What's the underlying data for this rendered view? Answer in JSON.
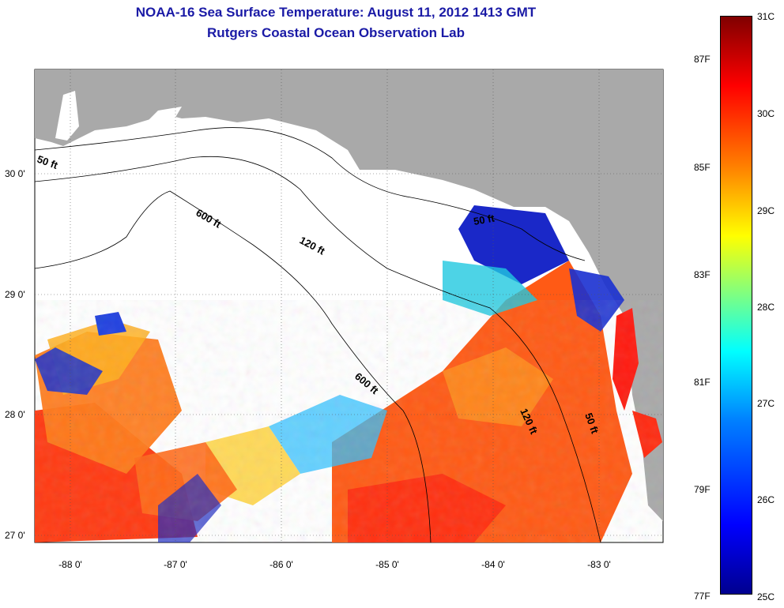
{
  "title": {
    "line1": "NOAA-16 Sea Surface Temperature:  August 11, 2012 1413 GMT",
    "line2": "Rutgers Coastal Ocean Observation Lab"
  },
  "map": {
    "region": "Eastern Gulf of Mexico / Florida Big Bend",
    "lon_range": [
      -88.3,
      -82.4
    ],
    "lat_range": [
      26.95,
      30.85
    ],
    "lon_ticks": [
      "-88 0'",
      "-87 0'",
      "-86 0'",
      "-85 0'",
      "-84 0'",
      "-83 0'"
    ],
    "lat_ticks": [
      "30 0'",
      "29 0'",
      "28 0'",
      "27 0'"
    ],
    "depth_labels": [
      "50 ft",
      "600 ft",
      "120 ft",
      "50 ft",
      "600 ft",
      "120 ft",
      "50 ft"
    ],
    "colors": {
      "land": "#a9a9a9",
      "no_data": "#ffffff",
      "contour": "#000000"
    }
  },
  "colorbar": {
    "celsius": [
      "31C",
      "30C",
      "29C",
      "28C",
      "27C",
      "26C",
      "25C"
    ],
    "fahrenheit": [
      "87F",
      "85F",
      "83F",
      "81F",
      "79F",
      "77F"
    ]
  }
}
